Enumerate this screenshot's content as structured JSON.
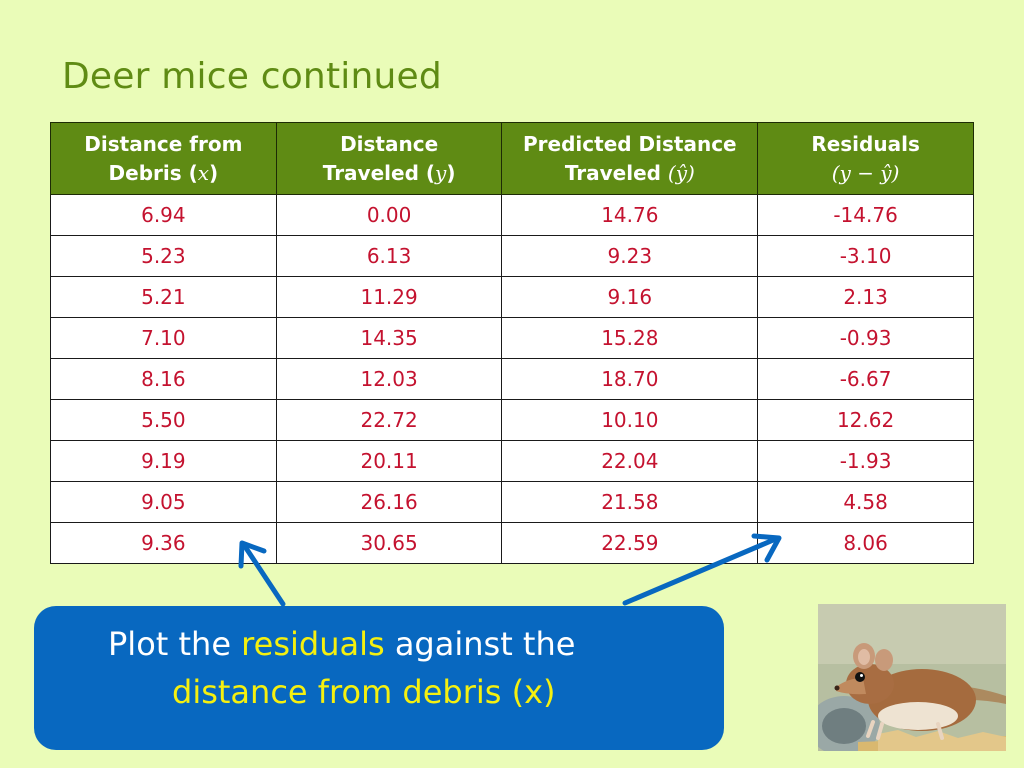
{
  "slide": {
    "title": "Deer mice continued"
  },
  "table": {
    "headers": [
      {
        "line1": "Distance from",
        "line2_prefix": "Debris (",
        "line2_symbol": "x",
        "line2_suffix": ")"
      },
      {
        "line1": "Distance",
        "line2_prefix": "Traveled (",
        "line2_symbol": "y",
        "line2_suffix": ")"
      },
      {
        "line1": "Predicted Distance",
        "line2_prefix": "Traveled ",
        "line2_symbol": "(ŷ)",
        "line2_suffix": ""
      },
      {
        "line1": "Residuals",
        "line2_prefix": "",
        "line2_symbol": "(y − ŷ)",
        "line2_suffix": ""
      }
    ],
    "rows": [
      [
        "6.94",
        "0.00",
        "14.76",
        "-14.76"
      ],
      [
        "5.23",
        "6.13",
        "9.23",
        "-3.10"
      ],
      [
        "5.21",
        "11.29",
        "9.16",
        "2.13"
      ],
      [
        "7.10",
        "14.35",
        "15.28",
        "-0.93"
      ],
      [
        "8.16",
        "12.03",
        "18.70",
        "-6.67"
      ],
      [
        "5.50",
        "22.72",
        "10.10",
        "12.62"
      ],
      [
        "9.19",
        "20.11",
        "22.04",
        "-1.93"
      ],
      [
        "9.05",
        "26.16",
        "21.58",
        "4.58"
      ],
      [
        "9.36",
        "30.65",
        "22.59",
        "8.06"
      ]
    ]
  },
  "callout": {
    "part1": "Plot the ",
    "highlight1": "residuals",
    "part2": " against the",
    "highlight2": "distance from debris (x)"
  },
  "photo": {
    "icon": "deer-mouse-photo"
  },
  "colors": {
    "background": "#eafcb8",
    "accent_green": "#5f8b14",
    "value_red": "#c4122f",
    "callout_blue": "#0868c0",
    "highlight_yellow": "#f5f00f"
  }
}
